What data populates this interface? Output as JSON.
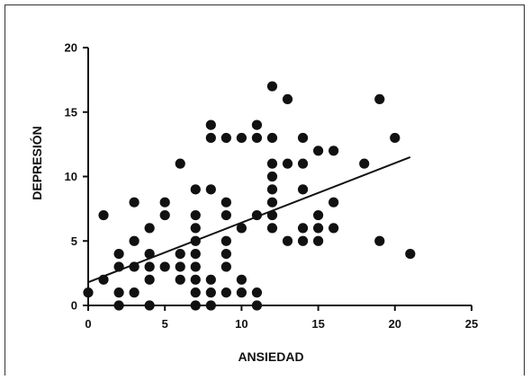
{
  "chart_data": {
    "type": "scatter",
    "title": "",
    "xlabel": "ANSIEDAD",
    "ylabel": "DEPRESIÓN",
    "xlim": [
      0,
      25
    ],
    "ylim": [
      0,
      20
    ],
    "xticks": [
      0,
      5,
      10,
      15,
      20,
      25
    ],
    "yticks": [
      0,
      5,
      10,
      15,
      20
    ],
    "grid": false,
    "legend": "none",
    "marker_color": "#111111",
    "points": [
      [
        0,
        1
      ],
      [
        1,
        7
      ],
      [
        1,
        2
      ],
      [
        2,
        4
      ],
      [
        2,
        3
      ],
      [
        2,
        1
      ],
      [
        2,
        0
      ],
      [
        3,
        8
      ],
      [
        3,
        5
      ],
      [
        3,
        3
      ],
      [
        3,
        1
      ],
      [
        4,
        6
      ],
      [
        4,
        4
      ],
      [
        4,
        3
      ],
      [
        4,
        2
      ],
      [
        4,
        0
      ],
      [
        5,
        8
      ],
      [
        5,
        7
      ],
      [
        5,
        3
      ],
      [
        6,
        11
      ],
      [
        6,
        4
      ],
      [
        6,
        3
      ],
      [
        6,
        2
      ],
      [
        7,
        9
      ],
      [
        7,
        7
      ],
      [
        7,
        6
      ],
      [
        7,
        5
      ],
      [
        7,
        4
      ],
      [
        7,
        3
      ],
      [
        7,
        2
      ],
      [
        7,
        1
      ],
      [
        7,
        0
      ],
      [
        8,
        14
      ],
      [
        8,
        13
      ],
      [
        8,
        9
      ],
      [
        8,
        2
      ],
      [
        8,
        1
      ],
      [
        8,
        0
      ],
      [
        9,
        13
      ],
      [
        9,
        8
      ],
      [
        9,
        7
      ],
      [
        9,
        5
      ],
      [
        9,
        4
      ],
      [
        9,
        3
      ],
      [
        9,
        1
      ],
      [
        10,
        13
      ],
      [
        10,
        6
      ],
      [
        10,
        2
      ],
      [
        10,
        1
      ],
      [
        11,
        14
      ],
      [
        11,
        13
      ],
      [
        11,
        7
      ],
      [
        11,
        1
      ],
      [
        11,
        0
      ],
      [
        12,
        17
      ],
      [
        12,
        13
      ],
      [
        12,
        11
      ],
      [
        12,
        10
      ],
      [
        12,
        9
      ],
      [
        12,
        8
      ],
      [
        12,
        7
      ],
      [
        12,
        6
      ],
      [
        13,
        16
      ],
      [
        13,
        11
      ],
      [
        13,
        5
      ],
      [
        14,
        13
      ],
      [
        14,
        11
      ],
      [
        14,
        9
      ],
      [
        14,
        6
      ],
      [
        14,
        5
      ],
      [
        15,
        12
      ],
      [
        15,
        7
      ],
      [
        15,
        6
      ],
      [
        15,
        5
      ],
      [
        16,
        12
      ],
      [
        16,
        8
      ],
      [
        16,
        6
      ],
      [
        18,
        11
      ],
      [
        19,
        16
      ],
      [
        19,
        5
      ],
      [
        20,
        13
      ],
      [
        21,
        4
      ]
    ],
    "trend_line": {
      "x": [
        0,
        21
      ],
      "y": [
        1.8,
        11.5
      ]
    }
  }
}
